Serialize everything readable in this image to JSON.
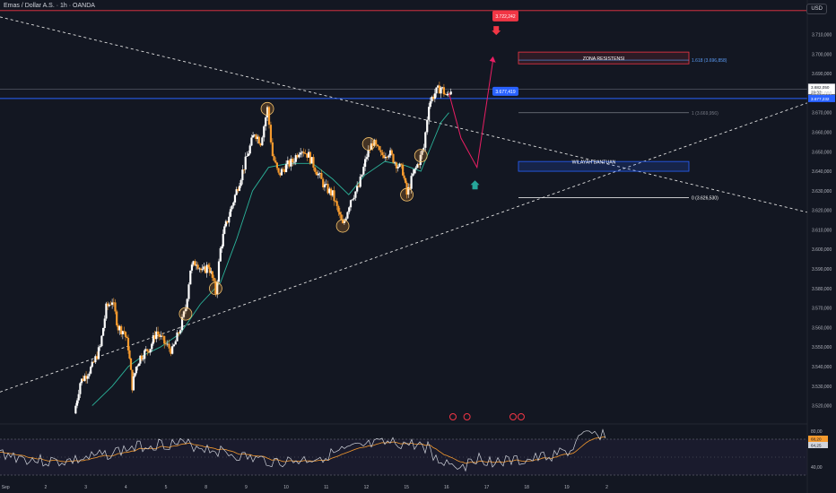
{
  "header": {
    "symbol": "Emas / Dollar A.S. · 1h · OANDA",
    "currency": "USD"
  },
  "colors": {
    "background": "#131722",
    "candle_up": "#ffffff",
    "candle_down": "#f59a2e",
    "ema": "#2bb39a",
    "support": "#2962ff",
    "resistance": "#f23645",
    "projection": "#e91e63",
    "rsi": "#d1d4dc",
    "rsi_ma": "#f59a2e"
  },
  "chart_data": {
    "type": "candlestick",
    "title": "Emas / Dollar A.S. · 1h · OANDA",
    "y_axis": {
      "range": [
        3512,
        3724
      ],
      "ticks": [
        "3.710,000",
        "3.700,000",
        "3.690,000",
        "3.680,000",
        "3.670,000",
        "3.660,000",
        "3.650,000",
        "3.640,000",
        "3.630,000",
        "3.620,000",
        "3.610,000",
        "3.600,000",
        "3.590,000",
        "3.580,000",
        "3.570,000",
        "3.560,000",
        "3.550,000",
        "3.540,000",
        "3.530,000",
        "3.520,000"
      ]
    },
    "x_axis": {
      "range": [
        0,
        20.14
      ],
      "ticks": [
        {
          "x": 0.14,
          "label": "Sep"
        },
        {
          "x": 1.14,
          "label": "2"
        },
        {
          "x": 2.14,
          "label": "3"
        },
        {
          "x": 3.14,
          "label": "4"
        },
        {
          "x": 4.14,
          "label": "5"
        },
        {
          "x": 5.14,
          "label": "8"
        },
        {
          "x": 6.14,
          "label": "9"
        },
        {
          "x": 7.14,
          "label": "10"
        },
        {
          "x": 8.14,
          "label": "11"
        },
        {
          "x": 9.14,
          "label": "12"
        },
        {
          "x": 10.14,
          "label": "15"
        },
        {
          "x": 11.14,
          "label": "16"
        },
        {
          "x": 12.14,
          "label": "17"
        },
        {
          "x": 13.14,
          "label": "18"
        },
        {
          "x": 14.14,
          "label": "19"
        },
        {
          "x": 15.14,
          "label": "2"
        }
      ]
    },
    "price_path": [
      [
        1.85,
        3516
      ],
      [
        2.0,
        3532
      ],
      [
        2.3,
        3540
      ],
      [
        2.5,
        3550
      ],
      [
        2.65,
        3570
      ],
      [
        2.8,
        3574
      ],
      [
        2.95,
        3560
      ],
      [
        3.1,
        3558
      ],
      [
        3.2,
        3550
      ],
      [
        3.3,
        3530
      ],
      [
        3.4,
        3540
      ],
      [
        3.5,
        3545
      ],
      [
        3.75,
        3550
      ],
      [
        3.9,
        3558
      ],
      [
        4.1,
        3552
      ],
      [
        4.3,
        3548
      ],
      [
        4.5,
        3560
      ],
      [
        4.63,
        3570
      ],
      [
        4.75,
        3590
      ],
      [
        4.9,
        3594
      ],
      [
        5.05,
        3588
      ],
      [
        5.2,
        3592
      ],
      [
        5.3,
        3585
      ],
      [
        5.38,
        3578
      ],
      [
        5.5,
        3600
      ],
      [
        5.6,
        3610
      ],
      [
        5.75,
        3620
      ],
      [
        5.9,
        3630
      ],
      [
        6.05,
        3640
      ],
      [
        6.2,
        3650
      ],
      [
        6.35,
        3660
      ],
      [
        6.5,
        3655
      ],
      [
        6.67,
        3672
      ],
      [
        6.8,
        3648
      ],
      [
        6.95,
        3638
      ],
      [
        7.1,
        3642
      ],
      [
        7.3,
        3645
      ],
      [
        7.5,
        3652
      ],
      [
        7.7,
        3648
      ],
      [
        7.9,
        3640
      ],
      [
        8.1,
        3632
      ],
      [
        8.3,
        3628
      ],
      [
        8.55,
        3612
      ],
      [
        8.75,
        3626
      ],
      [
        8.95,
        3632
      ],
      [
        9.15,
        3648
      ],
      [
        9.3,
        3655
      ],
      [
        9.5,
        3648
      ],
      [
        9.7,
        3650
      ],
      [
        9.85,
        3645
      ],
      [
        10.05,
        3640
      ],
      [
        10.15,
        3628
      ],
      [
        10.3,
        3638
      ],
      [
        10.45,
        3645
      ],
      [
        10.57,
        3652
      ],
      [
        10.7,
        3675
      ],
      [
        10.85,
        3680
      ],
      [
        11.0,
        3683
      ],
      [
        11.15,
        3678
      ],
      [
        11.25,
        3682
      ]
    ],
    "ema_path": [
      [
        2.3,
        3520
      ],
      [
        2.8,
        3530
      ],
      [
        3.2,
        3540
      ],
      [
        3.6,
        3546
      ],
      [
        4.0,
        3550
      ],
      [
        4.5,
        3557
      ],
      [
        5.0,
        3572
      ],
      [
        5.5,
        3583
      ],
      [
        5.9,
        3605
      ],
      [
        6.3,
        3630
      ],
      [
        6.7,
        3642
      ],
      [
        7.2,
        3644
      ],
      [
        7.8,
        3644
      ],
      [
        8.3,
        3636
      ],
      [
        8.7,
        3628
      ],
      [
        9.1,
        3638
      ],
      [
        9.6,
        3645
      ],
      [
        10.1,
        3643
      ],
      [
        10.5,
        3640
      ],
      [
        10.8,
        3655
      ],
      [
        11.0,
        3665
      ],
      [
        11.2,
        3670
      ]
    ],
    "levels": [
      {
        "name": "resistance-top",
        "price": 3722.242,
        "label": "3.722,242"
      },
      {
        "name": "support-line",
        "price": 3677.232,
        "label": "3.677,232"
      },
      {
        "name": "current-price",
        "price": 3682.05,
        "label": "3.682,050",
        "sublabel": "29:32"
      }
    ],
    "fibonacci": [
      {
        "ratio": "1.618",
        "price": 3696.858,
        "label": "1.618 (3.696,858)"
      },
      {
        "ratio": "1",
        "price": 3669.956,
        "label": "1 (3.669,956)"
      },
      {
        "ratio": "0",
        "price": 3626.53,
        "label": "0 (3.626,530)"
      }
    ],
    "annotations": {
      "resistance_zone": {
        "label": "ZONA RESISTENSI",
        "from": 3695,
        "to": 3701
      },
      "support_zone": {
        "label": "WILAYAH BANTUAN",
        "from": 3640,
        "to": 3645
      },
      "price_flag": "3.677,419"
    },
    "rsi": {
      "ticks": [
        "80,00",
        "40,00"
      ],
      "current": "68,20",
      "ma": "64,25"
    }
  }
}
